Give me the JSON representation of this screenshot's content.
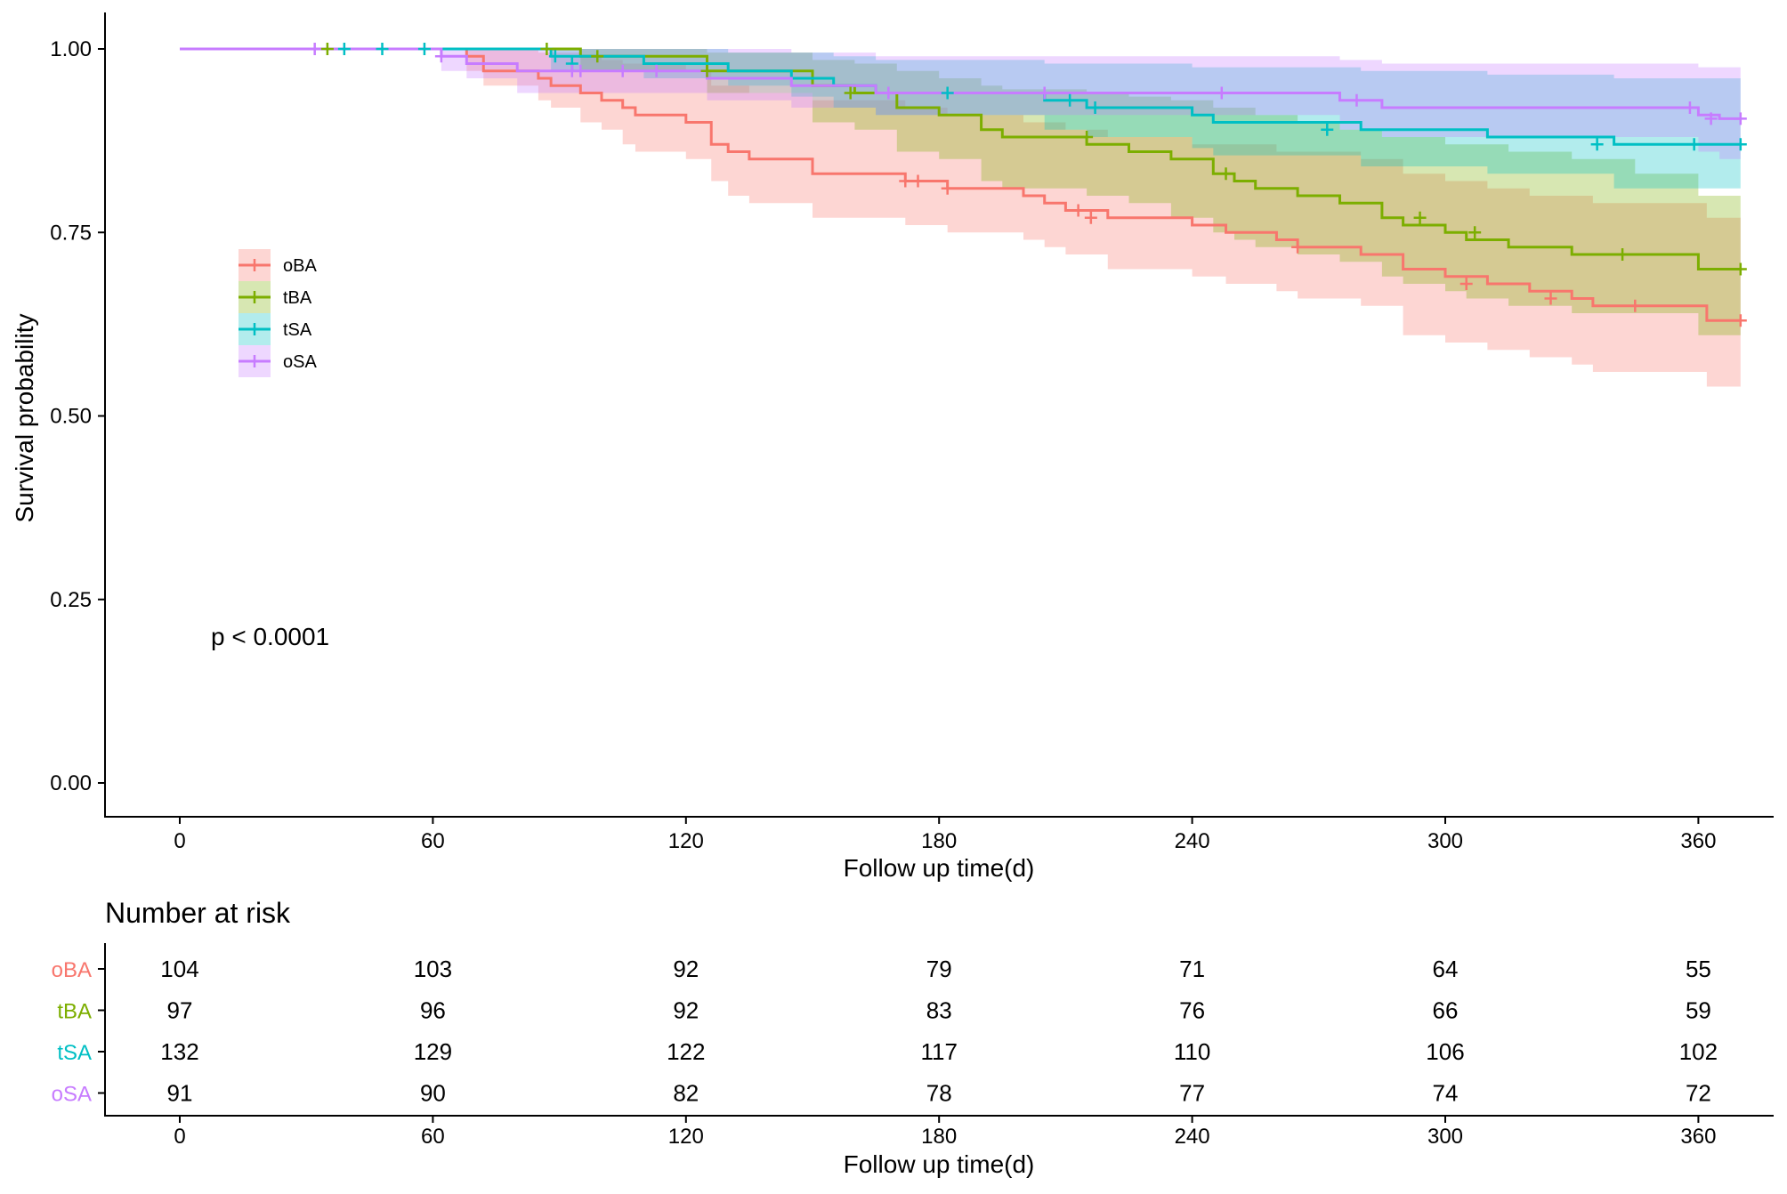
{
  "chart_data": {
    "type": "line",
    "subtype": "kaplan-meier-survival",
    "title": "",
    "xlabel": "Follow up time(d)",
    "ylabel": "Survival probability",
    "xlim": [
      0,
      370
    ],
    "ylim": [
      0,
      1
    ],
    "x_ticks": [
      "0",
      "60",
      "120",
      "180",
      "240",
      "300",
      "360"
    ],
    "y_ticks": [
      "0.00",
      "0.25",
      "0.50",
      "0.75",
      "1.00"
    ],
    "legend": {
      "placement": "top-left",
      "entries": [
        "oBA",
        "tBA",
        "tSA",
        "oSA"
      ]
    },
    "pvalue_label": "p < 0.0001",
    "series": [
      {
        "name": "oBA",
        "color": "#F8766D",
        "steps": [
          [
            0,
            1.0
          ],
          [
            68,
            0.99
          ],
          [
            72,
            0.97
          ],
          [
            85,
            0.96
          ],
          [
            88,
            0.95
          ],
          [
            95,
            0.94
          ],
          [
            100,
            0.93
          ],
          [
            105,
            0.92
          ],
          [
            108,
            0.91
          ],
          [
            120,
            0.9
          ],
          [
            126,
            0.87
          ],
          [
            130,
            0.86
          ],
          [
            135,
            0.85
          ],
          [
            150,
            0.83
          ],
          [
            165,
            0.83
          ],
          [
            172,
            0.82
          ],
          [
            182,
            0.81
          ],
          [
            200,
            0.8
          ],
          [
            205,
            0.79
          ],
          [
            210,
            0.78
          ],
          [
            220,
            0.77
          ],
          [
            240,
            0.76
          ],
          [
            248,
            0.75
          ],
          [
            260,
            0.74
          ],
          [
            265,
            0.73
          ],
          [
            280,
            0.72
          ],
          [
            290,
            0.7
          ],
          [
            300,
            0.69
          ],
          [
            310,
            0.68
          ],
          [
            320,
            0.67
          ],
          [
            330,
            0.66
          ],
          [
            335,
            0.65
          ],
          [
            362,
            0.63
          ],
          [
            370,
            0.63
          ]
        ],
        "ci_upper": [
          [
            0,
            1.0
          ],
          [
            68,
            1.0
          ],
          [
            72,
            1.0
          ],
          [
            85,
            0.995
          ],
          [
            95,
            0.99
          ],
          [
            100,
            0.985
          ],
          [
            105,
            0.98
          ],
          [
            120,
            0.97
          ],
          [
            126,
            0.95
          ],
          [
            135,
            0.94
          ],
          [
            150,
            0.93
          ],
          [
            172,
            0.92
          ],
          [
            182,
            0.91
          ],
          [
            200,
            0.9
          ],
          [
            210,
            0.89
          ],
          [
            220,
            0.88
          ],
          [
            240,
            0.87
          ],
          [
            260,
            0.86
          ],
          [
            280,
            0.85
          ],
          [
            290,
            0.83
          ],
          [
            300,
            0.82
          ],
          [
            310,
            0.81
          ],
          [
            320,
            0.8
          ],
          [
            335,
            0.79
          ],
          [
            362,
            0.77
          ],
          [
            370,
            0.77
          ]
        ],
        "ci_lower": [
          [
            0,
            1.0
          ],
          [
            68,
            0.97
          ],
          [
            72,
            0.95
          ],
          [
            85,
            0.93
          ],
          [
            88,
            0.92
          ],
          [
            95,
            0.9
          ],
          [
            100,
            0.89
          ],
          [
            105,
            0.87
          ],
          [
            108,
            0.86
          ],
          [
            120,
            0.85
          ],
          [
            126,
            0.82
          ],
          [
            130,
            0.8
          ],
          [
            135,
            0.79
          ],
          [
            150,
            0.77
          ],
          [
            165,
            0.77
          ],
          [
            172,
            0.76
          ],
          [
            182,
            0.75
          ],
          [
            200,
            0.74
          ],
          [
            205,
            0.73
          ],
          [
            210,
            0.72
          ],
          [
            220,
            0.7
          ],
          [
            240,
            0.69
          ],
          [
            248,
            0.68
          ],
          [
            260,
            0.67
          ],
          [
            265,
            0.66
          ],
          [
            280,
            0.65
          ],
          [
            290,
            0.61
          ],
          [
            300,
            0.6
          ],
          [
            310,
            0.59
          ],
          [
            320,
            0.58
          ],
          [
            330,
            0.57
          ],
          [
            335,
            0.56
          ],
          [
            362,
            0.54
          ],
          [
            370,
            0.54
          ]
        ],
        "censor": [
          [
            172,
            0.82
          ],
          [
            175,
            0.82
          ],
          [
            182,
            0.81
          ],
          [
            213,
            0.78
          ],
          [
            216,
            0.77
          ],
          [
            265,
            0.73
          ],
          [
            305,
            0.68
          ],
          [
            325,
            0.66
          ],
          [
            345,
            0.65
          ],
          [
            370,
            0.63
          ]
        ]
      },
      {
        "name": "tBA",
        "color": "#7CAE00",
        "steps": [
          [
            0,
            1.0
          ],
          [
            95,
            0.99
          ],
          [
            125,
            0.97
          ],
          [
            150,
            0.95
          ],
          [
            160,
            0.94
          ],
          [
            170,
            0.92
          ],
          [
            180,
            0.91
          ],
          [
            190,
            0.89
          ],
          [
            195,
            0.88
          ],
          [
            215,
            0.87
          ],
          [
            225,
            0.86
          ],
          [
            235,
            0.85
          ],
          [
            245,
            0.83
          ],
          [
            250,
            0.82
          ],
          [
            255,
            0.81
          ],
          [
            265,
            0.8
          ],
          [
            275,
            0.79
          ],
          [
            285,
            0.77
          ],
          [
            290,
            0.76
          ],
          [
            300,
            0.75
          ],
          [
            305,
            0.74
          ],
          [
            315,
            0.73
          ],
          [
            330,
            0.72
          ],
          [
            360,
            0.7
          ],
          [
            370,
            0.7
          ]
        ],
        "ci_upper": [
          [
            0,
            1.0
          ],
          [
            95,
            1.0
          ],
          [
            125,
            0.995
          ],
          [
            150,
            0.985
          ],
          [
            160,
            0.98
          ],
          [
            170,
            0.97
          ],
          [
            180,
            0.96
          ],
          [
            190,
            0.95
          ],
          [
            195,
            0.945
          ],
          [
            215,
            0.94
          ],
          [
            225,
            0.935
          ],
          [
            235,
            0.93
          ],
          [
            245,
            0.92
          ],
          [
            255,
            0.91
          ],
          [
            265,
            0.9
          ],
          [
            275,
            0.89
          ],
          [
            285,
            0.88
          ],
          [
            300,
            0.87
          ],
          [
            315,
            0.86
          ],
          [
            330,
            0.85
          ],
          [
            345,
            0.83
          ],
          [
            360,
            0.8
          ],
          [
            370,
            0.8
          ]
        ],
        "ci_lower": [
          [
            0,
            1.0
          ],
          [
            95,
            0.97
          ],
          [
            125,
            0.94
          ],
          [
            150,
            0.9
          ],
          [
            160,
            0.89
          ],
          [
            170,
            0.86
          ],
          [
            180,
            0.85
          ],
          [
            190,
            0.82
          ],
          [
            195,
            0.81
          ],
          [
            215,
            0.8
          ],
          [
            225,
            0.79
          ],
          [
            235,
            0.77
          ],
          [
            245,
            0.75
          ],
          [
            250,
            0.74
          ],
          [
            255,
            0.73
          ],
          [
            265,
            0.72
          ],
          [
            275,
            0.71
          ],
          [
            285,
            0.69
          ],
          [
            290,
            0.68
          ],
          [
            300,
            0.67
          ],
          [
            305,
            0.66
          ],
          [
            315,
            0.65
          ],
          [
            330,
            0.64
          ],
          [
            360,
            0.61
          ],
          [
            370,
            0.61
          ]
        ],
        "censor": [
          [
            35,
            1.0
          ],
          [
            87,
            1.0
          ],
          [
            99,
            0.99
          ],
          [
            125,
            0.97
          ],
          [
            159,
            0.94
          ],
          [
            215,
            0.88
          ],
          [
            248,
            0.83
          ],
          [
            294,
            0.77
          ],
          [
            307,
            0.75
          ],
          [
            342,
            0.72
          ],
          [
            370,
            0.7
          ]
        ]
      },
      {
        "name": "tSA",
        "color": "#00BFC4",
        "steps": [
          [
            0,
            1.0
          ],
          [
            88,
            0.99
          ],
          [
            110,
            0.98
          ],
          [
            130,
            0.97
          ],
          [
            145,
            0.96
          ],
          [
            155,
            0.95
          ],
          [
            165,
            0.94
          ],
          [
            205,
            0.93
          ],
          [
            215,
            0.92
          ],
          [
            240,
            0.91
          ],
          [
            245,
            0.9
          ],
          [
            280,
            0.89
          ],
          [
            310,
            0.88
          ],
          [
            340,
            0.87
          ],
          [
            370,
            0.87
          ]
        ],
        "ci_upper": [
          [
            0,
            1.0
          ],
          [
            88,
            1.0
          ],
          [
            110,
            1.0
          ],
          [
            130,
            0.995
          ],
          [
            155,
            0.99
          ],
          [
            165,
            0.985
          ],
          [
            205,
            0.98
          ],
          [
            240,
            0.975
          ],
          [
            280,
            0.97
          ],
          [
            310,
            0.965
          ],
          [
            340,
            0.96
          ],
          [
            370,
            0.96
          ]
        ],
        "ci_lower": [
          [
            0,
            1.0
          ],
          [
            88,
            0.97
          ],
          [
            110,
            0.96
          ],
          [
            130,
            0.95
          ],
          [
            145,
            0.935
          ],
          [
            155,
            0.92
          ],
          [
            165,
            0.91
          ],
          [
            205,
            0.89
          ],
          [
            215,
            0.88
          ],
          [
            240,
            0.865
          ],
          [
            245,
            0.855
          ],
          [
            280,
            0.84
          ],
          [
            310,
            0.83
          ],
          [
            340,
            0.81
          ],
          [
            370,
            0.81
          ]
        ],
        "censor": [
          [
            39,
            1.0
          ],
          [
            48,
            1.0
          ],
          [
            58,
            1.0
          ],
          [
            89,
            0.99
          ],
          [
            93,
            0.98
          ],
          [
            182,
            0.94
          ],
          [
            211,
            0.93
          ],
          [
            217,
            0.92
          ],
          [
            272,
            0.89
          ],
          [
            336,
            0.87
          ],
          [
            359,
            0.87
          ],
          [
            370,
            0.87
          ]
        ]
      },
      {
        "name": "oSA",
        "color": "#C77CFF",
        "steps": [
          [
            0,
            1.0
          ],
          [
            62,
            0.99
          ],
          [
            68,
            0.98
          ],
          [
            80,
            0.97
          ],
          [
            125,
            0.96
          ],
          [
            145,
            0.95
          ],
          [
            165,
            0.94
          ],
          [
            275,
            0.93
          ],
          [
            285,
            0.92
          ],
          [
            360,
            0.91
          ],
          [
            365,
            0.905
          ],
          [
            370,
            0.905
          ]
        ],
        "ci_upper": [
          [
            0,
            1.0
          ],
          [
            62,
            1.0
          ],
          [
            80,
            1.0
          ],
          [
            125,
            1.0
          ],
          [
            145,
            0.995
          ],
          [
            165,
            0.99
          ],
          [
            275,
            0.985
          ],
          [
            285,
            0.98
          ],
          [
            360,
            0.975
          ],
          [
            370,
            0.97
          ]
        ],
        "ci_lower": [
          [
            0,
            1.0
          ],
          [
            62,
            0.97
          ],
          [
            68,
            0.96
          ],
          [
            80,
            0.94
          ],
          [
            125,
            0.93
          ],
          [
            145,
            0.92
          ],
          [
            165,
            0.91
          ],
          [
            275,
            0.89
          ],
          [
            285,
            0.88
          ],
          [
            360,
            0.86
          ],
          [
            365,
            0.85
          ],
          [
            370,
            0.85
          ]
        ],
        "censor": [
          [
            32,
            1.0
          ],
          [
            62,
            0.99
          ],
          [
            93,
            0.97
          ],
          [
            95,
            0.97
          ],
          [
            105,
            0.97
          ],
          [
            113,
            0.97
          ],
          [
            168,
            0.94
          ],
          [
            205,
            0.94
          ],
          [
            247,
            0.94
          ],
          [
            279,
            0.93
          ],
          [
            358,
            0.92
          ],
          [
            363,
            0.905
          ],
          [
            370,
            0.905
          ]
        ]
      }
    ],
    "risk_table": {
      "title": "Number at risk",
      "xlabel": "Follow up time(d)",
      "x_ticks": [
        "0",
        "60",
        "120",
        "180",
        "240",
        "300",
        "360"
      ],
      "rows": [
        {
          "name": "oBA",
          "color": "#F8766D",
          "values": [
            "104",
            "103",
            "92",
            "79",
            "71",
            "64",
            "55"
          ]
        },
        {
          "name": "tBA",
          "color": "#7CAE00",
          "values": [
            "97",
            "96",
            "92",
            "83",
            "76",
            "66",
            "59"
          ]
        },
        {
          "name": "tSA",
          "color": "#00BFC4",
          "values": [
            "132",
            "129",
            "122",
            "117",
            "110",
            "106",
            "102"
          ]
        },
        {
          "name": "oSA",
          "color": "#C77CFF",
          "values": [
            "91",
            "90",
            "82",
            "78",
            "77",
            "74",
            "72"
          ]
        }
      ]
    }
  }
}
